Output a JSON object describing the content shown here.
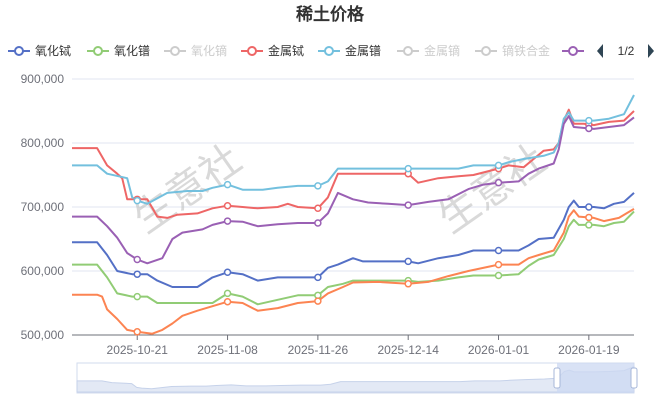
{
  "chart_data": {
    "type": "line",
    "title": "稀土价格",
    "watermark": "生意社",
    "legend": {
      "placement": "top",
      "page_indicator": "1/2",
      "items": [
        {
          "name": "氧化铽",
          "color": "#5470c6",
          "active": true
        },
        {
          "name": "氧化镨",
          "color": "#91cc75",
          "active": true
        },
        {
          "name": "氧化镝",
          "color": "#cccccc",
          "active": false
        },
        {
          "name": "金属铽",
          "color": "#ee6666",
          "active": true
        },
        {
          "name": "金属镨",
          "color": "#73c0de",
          "active": true
        },
        {
          "name": "金属镝",
          "color": "#cccccc",
          "active": false
        },
        {
          "name": "镝铁合金",
          "color": "#cccccc",
          "active": false
        },
        {
          "name": "",
          "color": "#9a60b4",
          "active": true
        }
      ]
    },
    "grid": true,
    "ylim": [
      500000,
      900000
    ],
    "y_ticks": [
      500000,
      600000,
      700000,
      800000,
      900000
    ],
    "y_tick_labels": [
      "500,000",
      "600,000",
      "700,000",
      "800,000",
      "900,000"
    ],
    "x_range": [
      "2025-10-08",
      "2026-01-28"
    ],
    "x_ticks": [
      "2025-10-21",
      "2025-11-08",
      "2025-11-26",
      "2025-12-14",
      "2026-01-01",
      "2026-01-19"
    ],
    "series": [
      {
        "color": "#5470c6",
        "points": [
          [
            "2025-10-08",
            645000
          ],
          [
            "2025-10-13",
            645000
          ],
          [
            "2025-10-15",
            625000
          ],
          [
            "2025-10-17",
            600000
          ],
          [
            "2025-10-20",
            595000
          ],
          [
            "2025-10-23",
            595000
          ],
          [
            "2025-10-25",
            585000
          ],
          [
            "2025-10-28",
            575000
          ],
          [
            "2025-11-02",
            575000
          ],
          [
            "2025-11-05",
            590000
          ],
          [
            "2025-11-08",
            598000
          ],
          [
            "2025-11-11",
            595000
          ],
          [
            "2025-11-14",
            585000
          ],
          [
            "2025-11-18",
            590000
          ],
          [
            "2025-11-22",
            590000
          ],
          [
            "2025-11-26",
            590000
          ],
          [
            "2025-11-28",
            605000
          ],
          [
            "2025-11-30",
            610000
          ],
          [
            "2025-12-03",
            620000
          ],
          [
            "2025-12-05",
            615000
          ],
          [
            "2025-12-14",
            615000
          ],
          [
            "2025-12-16",
            612000
          ],
          [
            "2025-12-20",
            620000
          ],
          [
            "2025-12-24",
            625000
          ],
          [
            "2025-12-27",
            632000
          ],
          [
            "2026-01-01",
            632000
          ],
          [
            "2026-01-05",
            632000
          ],
          [
            "2026-01-07",
            640000
          ],
          [
            "2026-01-09",
            650000
          ],
          [
            "2026-01-12",
            652000
          ],
          [
            "2026-01-14",
            680000
          ],
          [
            "2026-01-15",
            700000
          ],
          [
            "2026-01-16",
            710000
          ],
          [
            "2026-01-17",
            700000
          ],
          [
            "2026-01-20",
            700000
          ],
          [
            "2026-01-22",
            698000
          ],
          [
            "2026-01-24",
            705000
          ],
          [
            "2026-01-26",
            708000
          ],
          [
            "2026-01-28",
            722000
          ]
        ]
      },
      {
        "color": "#91cc75",
        "points": [
          [
            "2025-10-08",
            610000
          ],
          [
            "2025-10-13",
            610000
          ],
          [
            "2025-10-15",
            590000
          ],
          [
            "2025-10-17",
            565000
          ],
          [
            "2025-10-20",
            560000
          ],
          [
            "2025-10-23",
            560000
          ],
          [
            "2025-10-25",
            550000
          ],
          [
            "2025-11-05",
            550000
          ],
          [
            "2025-11-08",
            565000
          ],
          [
            "2025-11-11",
            560000
          ],
          [
            "2025-11-14",
            548000
          ],
          [
            "2025-11-18",
            555000
          ],
          [
            "2025-11-22",
            562000
          ],
          [
            "2025-11-26",
            562000
          ],
          [
            "2025-11-28",
            575000
          ],
          [
            "2025-12-01",
            580000
          ],
          [
            "2025-12-03",
            585000
          ],
          [
            "2025-12-14",
            585000
          ],
          [
            "2025-12-16",
            583000
          ],
          [
            "2025-12-20",
            585000
          ],
          [
            "2025-12-24",
            590000
          ],
          [
            "2025-12-27",
            593000
          ],
          [
            "2026-01-01",
            593000
          ],
          [
            "2026-01-05",
            595000
          ],
          [
            "2026-01-07",
            608000
          ],
          [
            "2026-01-09",
            618000
          ],
          [
            "2026-01-12",
            625000
          ],
          [
            "2026-01-14",
            650000
          ],
          [
            "2026-01-15",
            670000
          ],
          [
            "2026-01-16",
            680000
          ],
          [
            "2026-01-17",
            672000
          ],
          [
            "2026-01-20",
            672000
          ],
          [
            "2026-01-22",
            670000
          ],
          [
            "2026-01-24",
            675000
          ],
          [
            "2026-01-26",
            677000
          ],
          [
            "2026-01-28",
            693000
          ]
        ]
      },
      {
        "color": "#ee6666",
        "points": [
          [
            "2025-10-08",
            792000
          ],
          [
            "2025-10-13",
            792000
          ],
          [
            "2025-10-15",
            765000
          ],
          [
            "2025-10-17",
            752000
          ],
          [
            "2025-10-18",
            745000
          ],
          [
            "2025-10-19",
            712000
          ],
          [
            "2025-10-23",
            712000
          ],
          [
            "2025-10-25",
            685000
          ],
          [
            "2025-10-27",
            683000
          ],
          [
            "2025-10-29",
            688000
          ],
          [
            "2025-11-02",
            690000
          ],
          [
            "2025-11-05",
            698000
          ],
          [
            "2025-11-08",
            702000
          ],
          [
            "2025-11-11",
            700000
          ],
          [
            "2025-11-14",
            698000
          ],
          [
            "2025-11-18",
            700000
          ],
          [
            "2025-11-20",
            705000
          ],
          [
            "2025-11-22",
            700000
          ],
          [
            "2025-11-26",
            698000
          ],
          [
            "2025-11-28",
            715000
          ],
          [
            "2025-11-30",
            752000
          ],
          [
            "2025-12-14",
            752000
          ],
          [
            "2025-12-16",
            738000
          ],
          [
            "2025-12-20",
            745000
          ],
          [
            "2025-12-24",
            748000
          ],
          [
            "2025-12-27",
            750000
          ],
          [
            "2026-01-01",
            760000
          ],
          [
            "2026-01-03",
            765000
          ],
          [
            "2026-01-06",
            762000
          ],
          [
            "2026-01-08",
            775000
          ],
          [
            "2026-01-10",
            788000
          ],
          [
            "2026-01-12",
            790000
          ],
          [
            "2026-01-13",
            800000
          ],
          [
            "2026-01-14",
            835000
          ],
          [
            "2026-01-15",
            852000
          ],
          [
            "2026-01-16",
            830000
          ],
          [
            "2026-01-18",
            830000
          ],
          [
            "2026-01-20",
            828000
          ],
          [
            "2026-01-23",
            833000
          ],
          [
            "2026-01-26",
            835000
          ],
          [
            "2026-01-28",
            850000
          ]
        ]
      },
      {
        "color": "#73c0de",
        "points": [
          [
            "2025-10-08",
            765000
          ],
          [
            "2025-10-13",
            765000
          ],
          [
            "2025-10-15",
            752000
          ],
          [
            "2025-10-19",
            745000
          ],
          [
            "2025-10-20",
            715000
          ],
          [
            "2025-10-21",
            710000
          ],
          [
            "2025-10-23",
            705000
          ],
          [
            "2025-10-27",
            722000
          ],
          [
            "2025-10-31",
            725000
          ],
          [
            "2025-11-03",
            725000
          ],
          [
            "2025-11-05",
            730000
          ],
          [
            "2025-11-08",
            735000
          ],
          [
            "2025-11-11",
            727000
          ],
          [
            "2025-11-15",
            727000
          ],
          [
            "2025-11-18",
            730000
          ],
          [
            "2025-11-22",
            733000
          ],
          [
            "2025-11-26",
            733000
          ],
          [
            "2025-11-28",
            740000
          ],
          [
            "2025-11-30",
            760000
          ],
          [
            "2025-12-14",
            760000
          ],
          [
            "2025-12-24",
            760000
          ],
          [
            "2025-12-27",
            765000
          ],
          [
            "2026-01-01",
            765000
          ],
          [
            "2026-01-03",
            770000
          ],
          [
            "2026-01-06",
            775000
          ],
          [
            "2026-01-10",
            780000
          ],
          [
            "2026-01-12",
            785000
          ],
          [
            "2026-01-13",
            800000
          ],
          [
            "2026-01-14",
            838000
          ],
          [
            "2026-01-15",
            848000
          ],
          [
            "2026-01-16",
            835000
          ],
          [
            "2026-01-20",
            835000
          ],
          [
            "2026-01-23",
            838000
          ],
          [
            "2026-01-26",
            845000
          ],
          [
            "2026-01-28",
            875000
          ]
        ]
      },
      {
        "color": "#fc8452",
        "points": [
          [
            "2025-10-08",
            563000
          ],
          [
            "2025-10-13",
            563000
          ],
          [
            "2025-10-14",
            560000
          ],
          [
            "2025-10-15",
            540000
          ],
          [
            "2025-10-17",
            525000
          ],
          [
            "2025-10-19",
            508000
          ],
          [
            "2025-10-21",
            505000
          ],
          [
            "2025-10-24",
            502000
          ],
          [
            "2025-10-26",
            508000
          ],
          [
            "2025-10-28",
            518000
          ],
          [
            "2025-10-30",
            530000
          ],
          [
            "2025-11-02",
            538000
          ],
          [
            "2025-11-05",
            545000
          ],
          [
            "2025-11-08",
            552000
          ],
          [
            "2025-11-11",
            550000
          ],
          [
            "2025-11-14",
            538000
          ],
          [
            "2025-11-18",
            542000
          ],
          [
            "2025-11-22",
            550000
          ],
          [
            "2025-11-26",
            553000
          ],
          [
            "2025-11-28",
            565000
          ],
          [
            "2025-12-01",
            575000
          ],
          [
            "2025-12-03",
            582000
          ],
          [
            "2025-12-08",
            583000
          ],
          [
            "2025-12-14",
            580000
          ],
          [
            "2025-12-18",
            583000
          ],
          [
            "2025-12-22",
            592000
          ],
          [
            "2025-12-26",
            600000
          ],
          [
            "2026-01-01",
            610000
          ],
          [
            "2026-01-05",
            610000
          ],
          [
            "2026-01-07",
            620000
          ],
          [
            "2026-01-09",
            625000
          ],
          [
            "2026-01-12",
            632000
          ],
          [
            "2026-01-14",
            660000
          ],
          [
            "2026-01-15",
            685000
          ],
          [
            "2026-01-16",
            695000
          ],
          [
            "2026-01-17",
            685000
          ],
          [
            "2026-01-20",
            683000
          ],
          [
            "2026-01-22",
            678000
          ],
          [
            "2026-01-25",
            683000
          ],
          [
            "2026-01-28",
            697000
          ]
        ]
      },
      {
        "color": "#9a60b4",
        "points": [
          [
            "2025-10-08",
            685000
          ],
          [
            "2025-10-13",
            685000
          ],
          [
            "2025-10-15",
            670000
          ],
          [
            "2025-10-17",
            652000
          ],
          [
            "2025-10-19",
            628000
          ],
          [
            "2025-10-21",
            618000
          ],
          [
            "2025-10-23",
            612000
          ],
          [
            "2025-10-26",
            620000
          ],
          [
            "2025-10-28",
            650000
          ],
          [
            "2025-10-30",
            660000
          ],
          [
            "2025-11-03",
            665000
          ],
          [
            "2025-11-05",
            672000
          ],
          [
            "2025-11-08",
            678000
          ],
          [
            "2025-11-11",
            677000
          ],
          [
            "2025-11-14",
            670000
          ],
          [
            "2025-11-18",
            673000
          ],
          [
            "2025-11-22",
            675000
          ],
          [
            "2025-11-26",
            675000
          ],
          [
            "2025-11-28",
            690000
          ],
          [
            "2025-11-30",
            722000
          ],
          [
            "2025-12-03",
            712000
          ],
          [
            "2025-12-06",
            707000
          ],
          [
            "2025-12-10",
            705000
          ],
          [
            "2025-12-14",
            703000
          ],
          [
            "2025-12-18",
            708000
          ],
          [
            "2025-12-22",
            712000
          ],
          [
            "2025-12-26",
            728000
          ],
          [
            "2025-12-29",
            735000
          ],
          [
            "2026-01-01",
            738000
          ],
          [
            "2026-01-05",
            740000
          ],
          [
            "2026-01-07",
            752000
          ],
          [
            "2026-01-09",
            760000
          ],
          [
            "2026-01-12",
            768000
          ],
          [
            "2026-01-13",
            790000
          ],
          [
            "2026-01-14",
            830000
          ],
          [
            "2026-01-15",
            842000
          ],
          [
            "2026-01-16",
            825000
          ],
          [
            "2026-01-20",
            822000
          ],
          [
            "2026-01-23",
            825000
          ],
          [
            "2026-01-26",
            828000
          ],
          [
            "2026-01-28",
            840000
          ]
        ]
      }
    ],
    "markers": {
      "dates": [
        "2025-10-21",
        "2025-11-08",
        "2025-11-26",
        "2025-12-14",
        "2026-01-01",
        "2026-01-19"
      ],
      "series_index": [
        0,
        1,
        2,
        3,
        4,
        5
      ]
    }
  }
}
